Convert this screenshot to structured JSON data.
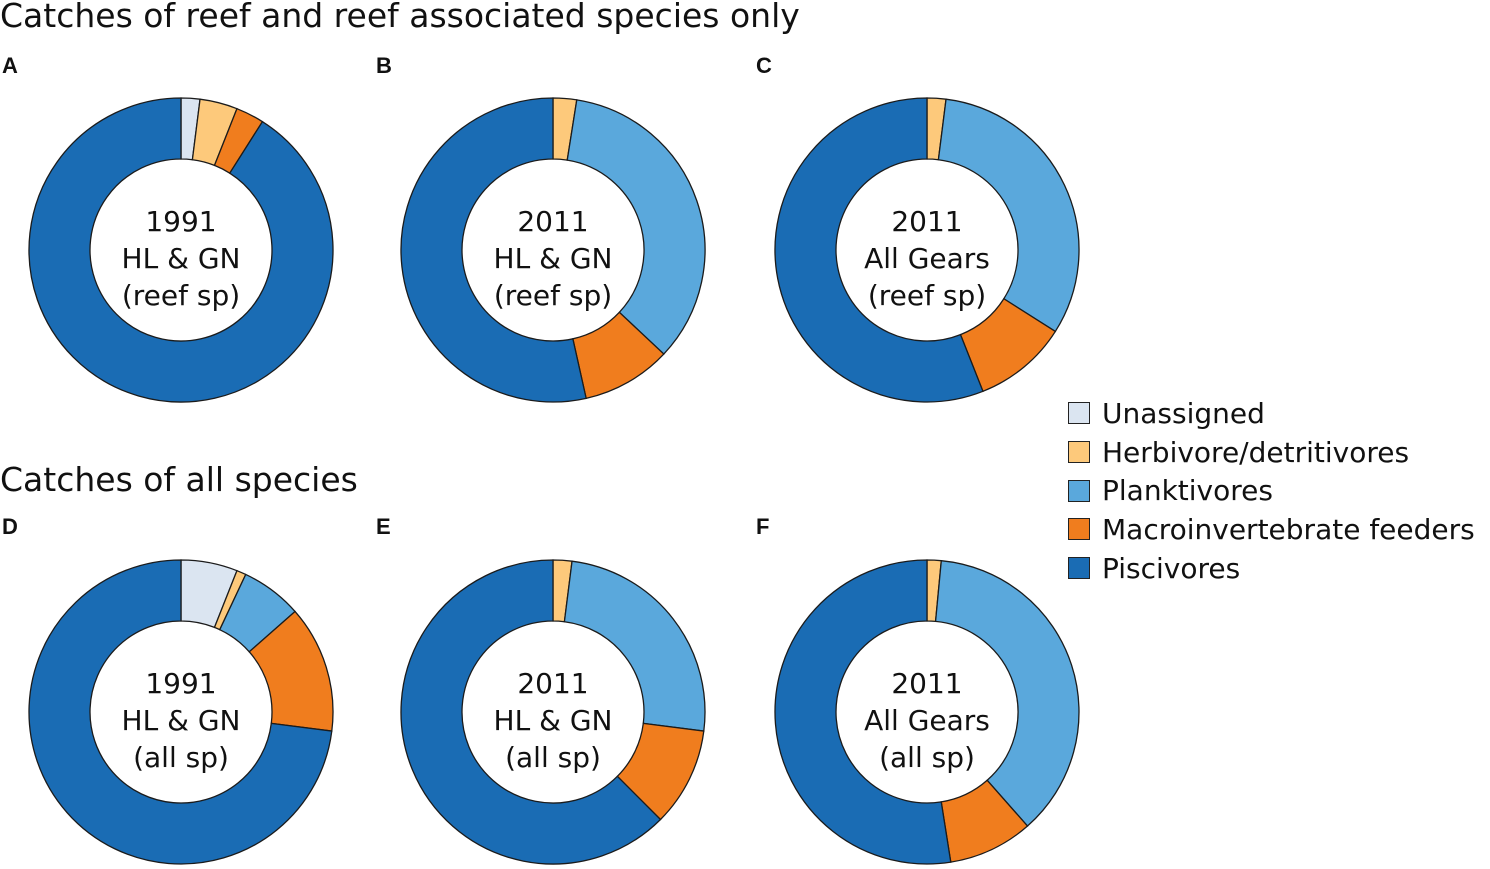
{
  "titles": {
    "top": "Catches of reef and reef associated species only",
    "bottom": "Catches of all species"
  },
  "chart_data": {
    "type": "pie",
    "variant": "donut",
    "slice_order": "clockwise from 12 o'clock",
    "legend": {
      "placement": "right",
      "entries": [
        {
          "name": "Unassigned",
          "color": "#dbe5f1"
        },
        {
          "name": "Herbivore/detritivores",
          "color": "#fdc97b"
        },
        {
          "name": "Planktivores",
          "color": "#5aa8dc"
        },
        {
          "name": "Macroinvertebrate feeders",
          "color": "#f07d1e"
        },
        {
          "name": "Piscivores",
          "color": "#1a6cb4"
        }
      ]
    },
    "panels": [
      {
        "letter": "A",
        "label": [
          "1991",
          "HL & GN",
          "(reef sp)"
        ],
        "values": [
          2,
          4,
          0,
          3,
          91
        ]
      },
      {
        "letter": "B",
        "label": [
          "2011",
          "HL & GN",
          "(reef sp)"
        ],
        "values": [
          0,
          2.5,
          34.5,
          9.5,
          53.5
        ]
      },
      {
        "letter": "C",
        "label": [
          "2011",
          "All Gears",
          "(reef sp)"
        ],
        "values": [
          0,
          2,
          32,
          10,
          56
        ]
      },
      {
        "letter": "D",
        "label": [
          "1991",
          "HL & GN",
          "(all sp)"
        ],
        "values": [
          6,
          1,
          6.5,
          13.5,
          73
        ]
      },
      {
        "letter": "E",
        "label": [
          "2011",
          "HL & GN",
          "(all sp)"
        ],
        "values": [
          0,
          2,
          25,
          10.5,
          62.5
        ]
      },
      {
        "letter": "F",
        "label": [
          "2011",
          "All Gears",
          "(all sp)"
        ],
        "values": [
          0,
          1.5,
          37,
          9,
          52.5
        ]
      }
    ],
    "units": "percent of catch"
  }
}
